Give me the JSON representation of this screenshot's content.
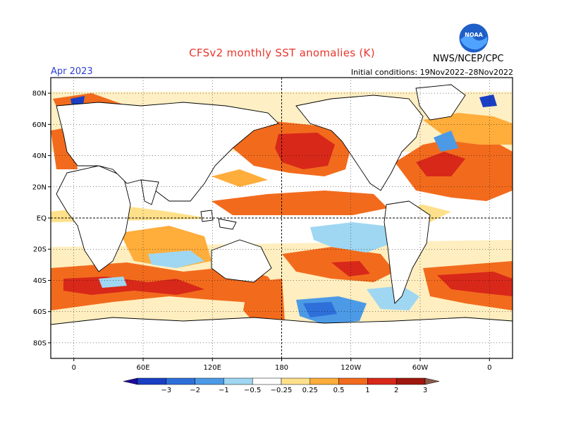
{
  "title": "CFSv2 monthly SST anomalies (K)",
  "agency": "NWS/NCEP/CPC",
  "forecast_month": "Apr 2023",
  "initial_conditions": "Initial conditions: 19Nov2022–28Nov2022",
  "logo": {
    "text": "NOAA",
    "icon": "noaa-logo-icon"
  },
  "map": {
    "projection": "cylindrical",
    "lat_range": [
      -90,
      90
    ],
    "lon_center": 180,
    "lat_labels": [
      "80N",
      "60N",
      "40N",
      "20N",
      "EQ",
      "20S",
      "40S",
      "60S",
      "80S"
    ],
    "lat_values": [
      80,
      60,
      40,
      20,
      0,
      -20,
      -40,
      -60,
      -80
    ],
    "lon_labels": [
      "0",
      "60E",
      "120E",
      "180",
      "120W",
      "60W",
      "0"
    ],
    "lon_values": [
      0,
      60,
      120,
      180,
      240,
      300,
      360
    ]
  },
  "colorbar": {
    "labels": [
      "−3",
      "−2",
      "−1",
      "−0.5",
      "−0.25",
      "0.25",
      "0.5",
      "1",
      "2",
      "3"
    ],
    "colors": [
      "#1d0a9e",
      "#1a3fc4",
      "#2e6fd9",
      "#4c9ae6",
      "#9fd7f2",
      "#ffffff",
      "#ffe08a",
      "#ffad3b",
      "#f26b1d",
      "#d8281a",
      "#a0170e",
      "#8a5a4a"
    ]
  }
}
